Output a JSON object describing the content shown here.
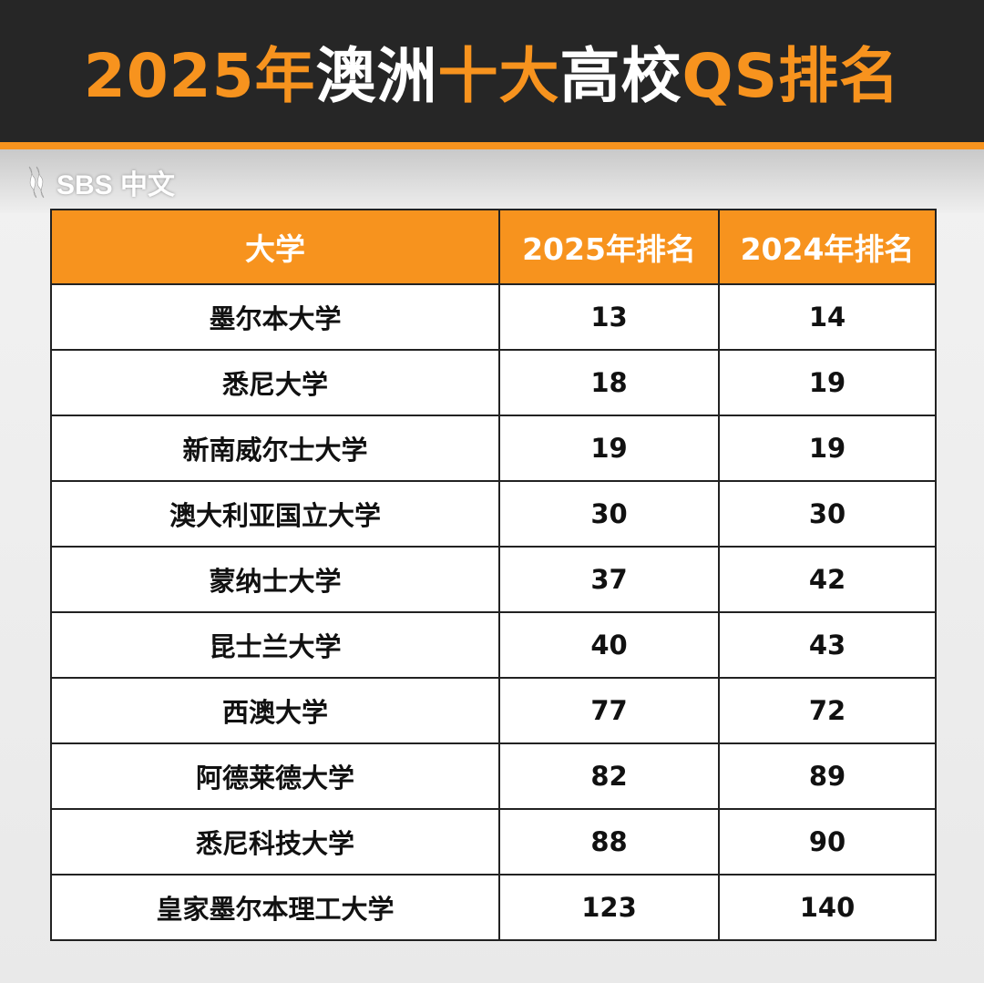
{
  "header": {
    "title_segments": [
      {
        "text": "2025年",
        "color": "#f7931e"
      },
      {
        "text": "澳洲",
        "color": "#ffffff"
      },
      {
        "text": "十大",
        "color": "#f7931e"
      },
      {
        "text": "高校",
        "color": "#ffffff"
      },
      {
        "text": "QS排名",
        "color": "#f7931e"
      }
    ]
  },
  "brand": {
    "logo_text": "SBS 中文"
  },
  "colors": {
    "accent": "#f7931e",
    "header_bg": "#262626"
  },
  "chart_data": {
    "type": "table",
    "columns": [
      "大学",
      "2025年排名",
      "2024年排名"
    ],
    "rows": [
      [
        "墨尔本大学",
        "13",
        "14"
      ],
      [
        "悉尼大学",
        "18",
        "19"
      ],
      [
        "新南威尔士大学",
        "19",
        "19"
      ],
      [
        "澳大利亚国立大学",
        "30",
        "30"
      ],
      [
        "蒙纳士大学",
        "37",
        "42"
      ],
      [
        "昆士兰大学",
        "40",
        "43"
      ],
      [
        "西澳大学",
        "77",
        "72"
      ],
      [
        "阿德莱德大学",
        "82",
        "89"
      ],
      [
        "悉尼科技大学",
        "88",
        "90"
      ],
      [
        "皇家墨尔本理工大学",
        "123",
        "140"
      ]
    ]
  }
}
